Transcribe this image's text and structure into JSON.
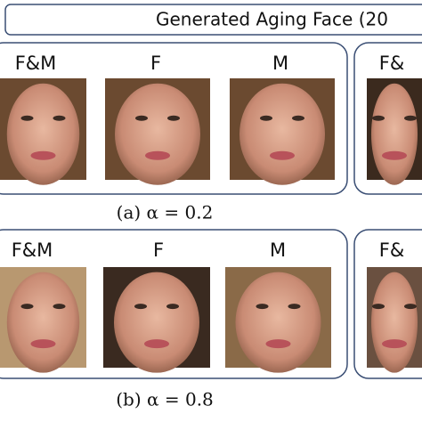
{
  "header": {
    "title": "Generated Aging Face (20"
  },
  "panels": [
    {
      "labels": [
        "F&M",
        "F",
        "M",
        "F&"
      ],
      "caption": "(a) α = 0.2"
    },
    {
      "labels": [
        "F&M",
        "F",
        "M",
        "F&"
      ],
      "caption": "(b) α = 0.8"
    }
  ]
}
